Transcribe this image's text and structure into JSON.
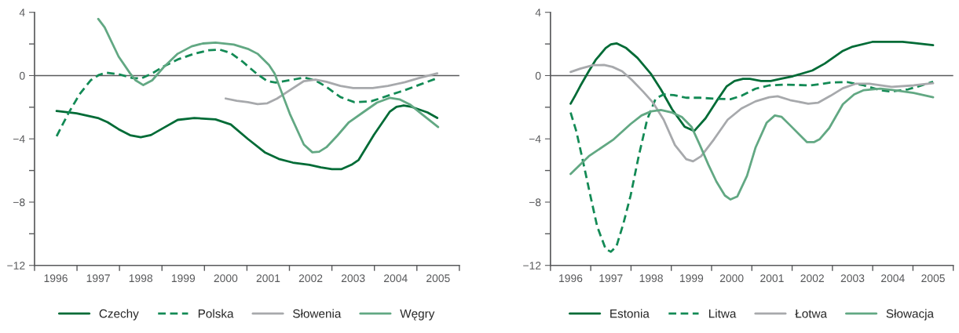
{
  "chart_data": [
    {
      "type": "line",
      "xlim": [
        1996,
        2006
      ],
      "ylim": [
        -12,
        4
      ],
      "xticks": [
        {
          "value": 1996,
          "label": null
        },
        {
          "value": 1996.5,
          "label": "1996"
        },
        {
          "value": 1997,
          "label": null
        },
        {
          "value": 1997.5,
          "label": "1997"
        },
        {
          "value": 1998,
          "label": null
        },
        {
          "value": 1998.5,
          "label": "1998"
        },
        {
          "value": 1999,
          "label": null
        },
        {
          "value": 1999.5,
          "label": "1999"
        },
        {
          "value": 2000,
          "label": null
        },
        {
          "value": 2000.5,
          "label": "2000"
        },
        {
          "value": 2001,
          "label": null
        },
        {
          "value": 2001.5,
          "label": "2001"
        },
        {
          "value": 2002,
          "label": null
        },
        {
          "value": 2002.5,
          "label": "2002"
        },
        {
          "value": 2003,
          "label": null
        },
        {
          "value": 2003.5,
          "label": "2003"
        },
        {
          "value": 2004,
          "label": null
        },
        {
          "value": 2004.5,
          "label": "2004"
        },
        {
          "value": 2005,
          "label": null
        },
        {
          "value": 2005.5,
          "label": "2005"
        },
        {
          "value": 2006,
          "label": null
        }
      ],
      "yticks": [
        {
          "value": 4,
          "label": "4"
        },
        {
          "value": 2,
          "label": null
        },
        {
          "value": 0,
          "label": "0"
        },
        {
          "value": -2,
          "label": null
        },
        {
          "value": -4,
          "label": "−4"
        },
        {
          "value": -6,
          "label": null
        },
        {
          "value": -8,
          "label": "−8"
        },
        {
          "value": -10,
          "label": null
        },
        {
          "value": -12,
          "label": "−12"
        }
      ],
      "ref_lines": [
        {
          "axis": "y",
          "value": 0,
          "color": "#58595b"
        }
      ],
      "legend": "bottom",
      "grid": false,
      "series": [
        {
          "name": "Czechy",
          "color": "#006b36",
          "line_style": "solid",
          "x": [
            1996.52,
            1996.99,
            1997.49,
            1997.72,
            1997.98,
            1998.25,
            1998.5,
            1998.74,
            1999.04,
            1999.37,
            1999.76,
            2000.26,
            2000.62,
            2001.02,
            2001.42,
            2001.75,
            2002.08,
            2002.47,
            2002.74,
            2003.0,
            2003.23,
            2003.46,
            2003.63,
            2003.99,
            2004.36,
            2004.52,
            2004.69,
            2004.88,
            2005.25,
            2005.48
          ],
          "values": [
            -2.24,
            -2.38,
            -2.68,
            -2.95,
            -3.39,
            -3.77,
            -3.9,
            -3.76,
            -3.3,
            -2.8,
            -2.68,
            -2.77,
            -3.09,
            -4.0,
            -4.85,
            -5.27,
            -5.5,
            -5.64,
            -5.8,
            -5.91,
            -5.91,
            -5.64,
            -5.33,
            -3.74,
            -2.29,
            -1.98,
            -1.89,
            -1.98,
            -2.33,
            -2.68
          ]
        },
        {
          "name": "Polska",
          "color": "#138a55",
          "line_style": "dashed",
          "x": [
            1996.52,
            1996.79,
            1997.06,
            1997.32,
            1997.52,
            1997.68,
            1997.98,
            1998.31,
            1998.51,
            1998.77,
            1999.04,
            1999.37,
            1999.76,
            2000.1,
            2000.36,
            2000.62,
            2000.89,
            2001.22,
            2001.48,
            2001.68,
            2002.08,
            2002.34,
            2002.61,
            2002.87,
            2003.2,
            2003.53,
            2003.93,
            2004.32,
            2004.72,
            2005.11,
            2005.43
          ],
          "values": [
            -3.83,
            -2.42,
            -1.18,
            -0.3,
            0.05,
            0.18,
            0.09,
            -0.16,
            -0.18,
            0.14,
            0.58,
            1.02,
            1.38,
            1.6,
            1.64,
            1.43,
            0.9,
            0.14,
            -0.35,
            -0.44,
            -0.26,
            -0.12,
            -0.3,
            -0.71,
            -1.36,
            -1.68,
            -1.62,
            -1.27,
            -0.92,
            -0.53,
            -0.21
          ]
        },
        {
          "name": "Słowenia",
          "color": "#a7a9ac",
          "line_style": "solid",
          "x": [
            2000.5,
            2000.76,
            2001.02,
            2001.25,
            2001.48,
            2001.71,
            2002.01,
            2002.34,
            2002.61,
            2002.87,
            2003.2,
            2003.5,
            2003.96,
            2004.32,
            2004.72,
            2005.05,
            2005.48
          ],
          "values": [
            -1.45,
            -1.59,
            -1.68,
            -1.8,
            -1.75,
            -1.45,
            -0.92,
            -0.35,
            -0.26,
            -0.39,
            -0.65,
            -0.79,
            -0.79,
            -0.65,
            -0.42,
            -0.16,
            0.14
          ]
        },
        {
          "name": "Węgry",
          "color": "#62a883",
          "line_style": "solid",
          "x": [
            1997.5,
            1997.65,
            1997.98,
            1998.25,
            1998.38,
            1998.56,
            1998.77,
            1999.04,
            1999.37,
            1999.7,
            1999.96,
            2000.26,
            2000.69,
            2001.02,
            2001.25,
            2001.52,
            2001.65,
            2001.81,
            2002.01,
            2002.34,
            2002.54,
            2002.7,
            2002.87,
            2003.13,
            2003.4,
            2003.73,
            2004.06,
            2004.36,
            2004.59,
            2004.85,
            2005.11,
            2005.5
          ],
          "values": [
            3.58,
            3.05,
            1.2,
            0.14,
            -0.3,
            -0.6,
            -0.3,
            0.53,
            1.38,
            1.85,
            2.03,
            2.08,
            1.96,
            1.69,
            1.38,
            0.67,
            0.14,
            -1.01,
            -2.42,
            -4.36,
            -4.85,
            -4.81,
            -4.53,
            -3.79,
            -2.95,
            -2.33,
            -1.71,
            -1.41,
            -1.5,
            -1.85,
            -2.42,
            -3.25
          ]
        }
      ]
    },
    {
      "type": "line",
      "xlim": [
        1996,
        2006
      ],
      "ylim": [
        -12,
        4
      ],
      "xticks": [
        {
          "value": 1996,
          "label": null
        },
        {
          "value": 1996.5,
          "label": "1996"
        },
        {
          "value": 1997,
          "label": null
        },
        {
          "value": 1997.5,
          "label": "1997"
        },
        {
          "value": 1998,
          "label": null
        },
        {
          "value": 1998.5,
          "label": "1998"
        },
        {
          "value": 1999,
          "label": null
        },
        {
          "value": 1999.5,
          "label": "1999"
        },
        {
          "value": 2000,
          "label": null
        },
        {
          "value": 2000.5,
          "label": "2000"
        },
        {
          "value": 2001,
          "label": null
        },
        {
          "value": 2001.5,
          "label": "2001"
        },
        {
          "value": 2002,
          "label": null
        },
        {
          "value": 2002.5,
          "label": "2002"
        },
        {
          "value": 2003,
          "label": null
        },
        {
          "value": 2003.5,
          "label": "2003"
        },
        {
          "value": 2004,
          "label": null
        },
        {
          "value": 2004.5,
          "label": "2004"
        },
        {
          "value": 2005,
          "label": null
        },
        {
          "value": 2005.5,
          "label": "2005"
        },
        {
          "value": 2006,
          "label": null
        }
      ],
      "yticks": [
        {
          "value": 4,
          "label": "4"
        },
        {
          "value": 2,
          "label": null
        },
        {
          "value": 0,
          "label": "0"
        },
        {
          "value": -2,
          "label": null
        },
        {
          "value": -4,
          "label": "−4"
        },
        {
          "value": -6,
          "label": null
        },
        {
          "value": -8,
          "label": "−8"
        },
        {
          "value": -10,
          "label": null
        },
        {
          "value": -12,
          "label": "−12"
        }
      ],
      "ref_lines": [
        {
          "axis": "y",
          "value": 0,
          "color": "#58595b"
        }
      ],
      "legend": "bottom",
      "grid": false,
      "series": [
        {
          "name": "Estonia",
          "color": "#006b36",
          "line_style": "solid",
          "x": [
            1996.5,
            1996.61,
            1996.74,
            1996.95,
            1997.12,
            1997.37,
            1997.5,
            1997.64,
            1997.88,
            1998.16,
            1998.5,
            1998.74,
            1999.02,
            1999.33,
            1999.57,
            1999.85,
            2000.12,
            2000.37,
            2000.57,
            2000.78,
            2000.95,
            2001.23,
            2001.47,
            2001.71,
            2002.02,
            2002.5,
            2002.81,
            2003.26,
            2003.5,
            2003.99,
            2004.74,
            2005.02,
            2005.5
          ],
          "values": [
            -1.78,
            -1.28,
            -0.66,
            0.27,
            0.98,
            1.74,
            1.97,
            2.04,
            1.74,
            1.12,
            0.09,
            -0.87,
            -2.13,
            -3.23,
            -3.5,
            -2.7,
            -1.63,
            -0.69,
            -0.34,
            -0.21,
            -0.21,
            -0.34,
            -0.34,
            -0.21,
            -0.04,
            0.32,
            0.76,
            1.56,
            1.83,
            2.13,
            2.13,
            2.06,
            1.92
          ]
        },
        {
          "name": "Litwa",
          "color": "#138a55",
          "line_style": "dashed",
          "x": [
            1996.5,
            1996.64,
            1996.78,
            1996.99,
            1997.16,
            1997.37,
            1997.5,
            1997.64,
            1997.81,
            1997.99,
            1998.19,
            1998.4,
            1998.61,
            1998.81,
            1999.06,
            1999.37,
            1999.71,
            2000.06,
            2000.47,
            2000.74,
            2001.09,
            2001.43,
            2001.85,
            2002.47,
            2002.95,
            2003.37,
            2003.78,
            2004.19,
            2004.47,
            2004.88,
            2005.16,
            2005.5
          ],
          "values": [
            -2.34,
            -3.5,
            -5.1,
            -7.58,
            -9.54,
            -10.96,
            -11.14,
            -10.78,
            -9.36,
            -7.58,
            -5.1,
            -2.79,
            -1.46,
            -1.19,
            -1.23,
            -1.4,
            -1.4,
            -1.46,
            -1.49,
            -1.28,
            -0.83,
            -0.62,
            -0.57,
            -0.62,
            -0.44,
            -0.41,
            -0.62,
            -0.92,
            -1.01,
            -0.87,
            -0.66,
            -0.39
          ]
        },
        {
          "name": "Łotwa",
          "color": "#a7a9ac",
          "line_style": "solid",
          "x": [
            1996.5,
            1996.74,
            1997.06,
            1997.33,
            1997.54,
            1997.78,
            1998.02,
            1998.3,
            1998.54,
            1998.81,
            1999.09,
            1999.37,
            1999.54,
            1999.74,
            2000.06,
            2000.4,
            2000.74,
            2001.09,
            2001.43,
            2001.64,
            2001.95,
            2002.4,
            2002.64,
            2002.95,
            2003.26,
            2003.57,
            2003.92,
            2004.47,
            2005.02,
            2005.5
          ],
          "values": [
            0.23,
            0.44,
            0.66,
            0.67,
            0.55,
            0.27,
            -0.27,
            -1.01,
            -1.69,
            -2.79,
            -4.39,
            -5.28,
            -5.42,
            -5.1,
            -4.03,
            -2.79,
            -2.08,
            -1.63,
            -1.37,
            -1.31,
            -1.55,
            -1.78,
            -1.72,
            -1.28,
            -0.8,
            -0.52,
            -0.52,
            -0.71,
            -0.62,
            -0.48
          ]
        },
        {
          "name": "Słowacja",
          "color": "#62a883",
          "line_style": "solid",
          "x": [
            1996.5,
            1996.95,
            1997.57,
            1997.99,
            1998.26,
            1998.5,
            1998.74,
            1999.02,
            1999.26,
            1999.5,
            1999.71,
            1999.92,
            2000.12,
            2000.33,
            2000.47,
            2000.64,
            2000.88,
            2001.09,
            2001.37,
            2001.57,
            2001.74,
            2001.95,
            2002.37,
            2002.54,
            2002.68,
            2002.92,
            2003.26,
            2003.54,
            2003.78,
            2004.19,
            2004.54,
            2005.02,
            2005.5
          ],
          "values": [
            -6.22,
            -5.1,
            -4.03,
            -3.06,
            -2.52,
            -2.26,
            -2.17,
            -2.34,
            -2.61,
            -3.23,
            -4.39,
            -5.63,
            -6.7,
            -7.58,
            -7.83,
            -7.64,
            -6.34,
            -4.56,
            -2.97,
            -2.52,
            -2.61,
            -3.14,
            -4.21,
            -4.21,
            -4.03,
            -3.32,
            -1.81,
            -1.19,
            -0.92,
            -0.83,
            -0.92,
            -1.1,
            -1.37
          ]
        }
      ]
    }
  ]
}
